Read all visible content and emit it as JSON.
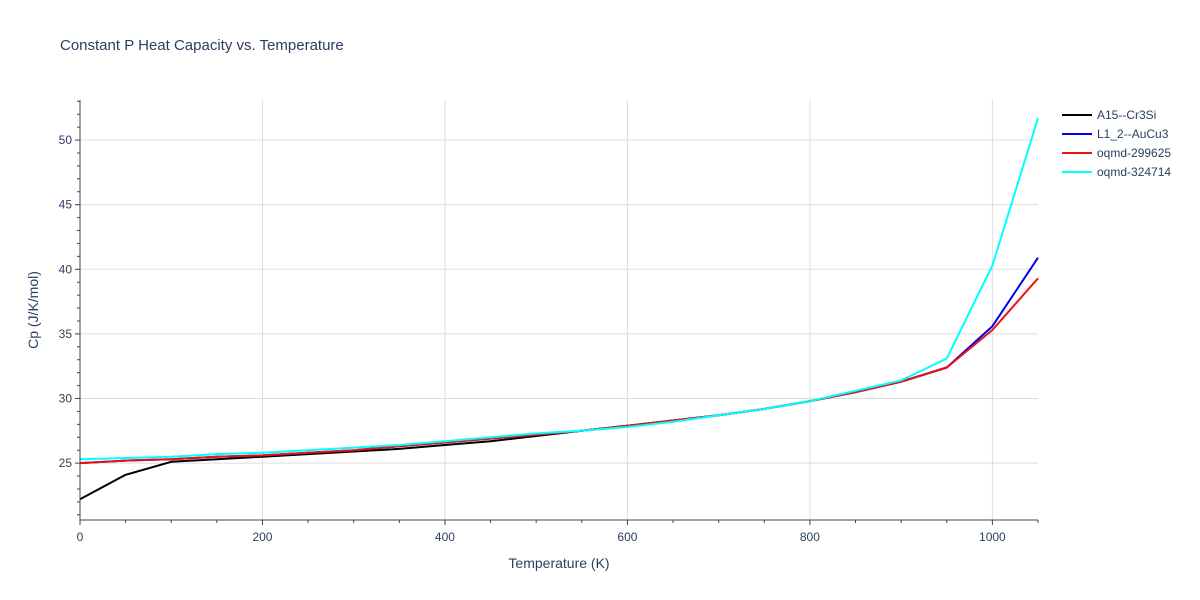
{
  "chart_data": {
    "type": "line",
    "title": "Constant P Heat Capacity vs. Temperature",
    "xlabel": "Temperature (K)",
    "ylabel": "Cp (J/K/mol)",
    "xlim": [
      0,
      1050
    ],
    "ylim": [
      20.6,
      53.1
    ],
    "xticks": [
      0,
      200,
      400,
      600,
      800,
      1000
    ],
    "yticks": [
      25,
      30,
      35,
      40,
      45,
      50
    ],
    "grid": true,
    "legend_position": "top-right",
    "series": [
      {
        "name": "A15--Cr3Si",
        "color": "#000000",
        "x": [
          0,
          50,
          100,
          150,
          200,
          250,
          300,
          350,
          400,
          450,
          500,
          550,
          600,
          650,
          700,
          750,
          800,
          850,
          900,
          950
        ],
        "y": [
          22.2,
          24.1,
          25.1,
          25.3,
          25.5,
          25.7,
          25.9,
          26.1,
          26.4,
          26.7,
          27.1,
          27.5,
          27.9,
          28.3,
          28.7,
          29.2,
          29.8,
          30.5,
          31.3,
          32.4
        ]
      },
      {
        "name": "L1_2--AuCu3",
        "color": "#0000ee",
        "x": [
          0,
          50,
          100,
          150,
          200,
          250,
          300,
          350,
          400,
          450,
          500,
          550,
          600,
          650,
          700,
          750,
          800,
          850,
          900,
          950,
          1000,
          1050
        ],
        "y": [
          25.0,
          25.2,
          25.3,
          25.5,
          25.6,
          25.8,
          26.0,
          26.3,
          26.6,
          26.9,
          27.2,
          27.5,
          27.9,
          28.3,
          28.7,
          29.2,
          29.8,
          30.5,
          31.3,
          32.4,
          35.6,
          40.9
        ]
      },
      {
        "name": "oqmd-299625",
        "color": "#ee1111",
        "x": [
          0,
          50,
          100,
          150,
          200,
          250,
          300,
          350,
          400,
          450,
          500,
          550,
          600,
          650,
          700,
          750,
          800,
          850,
          900,
          950,
          1000,
          1050
        ],
        "y": [
          25.0,
          25.2,
          25.3,
          25.5,
          25.6,
          25.8,
          26.0,
          26.3,
          26.6,
          26.9,
          27.2,
          27.5,
          27.9,
          28.3,
          28.7,
          29.2,
          29.8,
          30.5,
          31.3,
          32.4,
          35.3,
          39.3
        ]
      },
      {
        "name": "oqmd-324714",
        "color": "#00ffff",
        "x": [
          0,
          50,
          100,
          150,
          200,
          250,
          300,
          350,
          400,
          450,
          500,
          550,
          600,
          650,
          700,
          750,
          800,
          850,
          900,
          950,
          1000,
          1050
        ],
        "y": [
          25.3,
          25.4,
          25.5,
          25.7,
          25.8,
          26.0,
          26.2,
          26.4,
          26.7,
          27.0,
          27.3,
          27.5,
          27.8,
          28.2,
          28.7,
          29.2,
          29.8,
          30.6,
          31.4,
          33.1,
          40.3,
          51.7
        ]
      }
    ]
  }
}
